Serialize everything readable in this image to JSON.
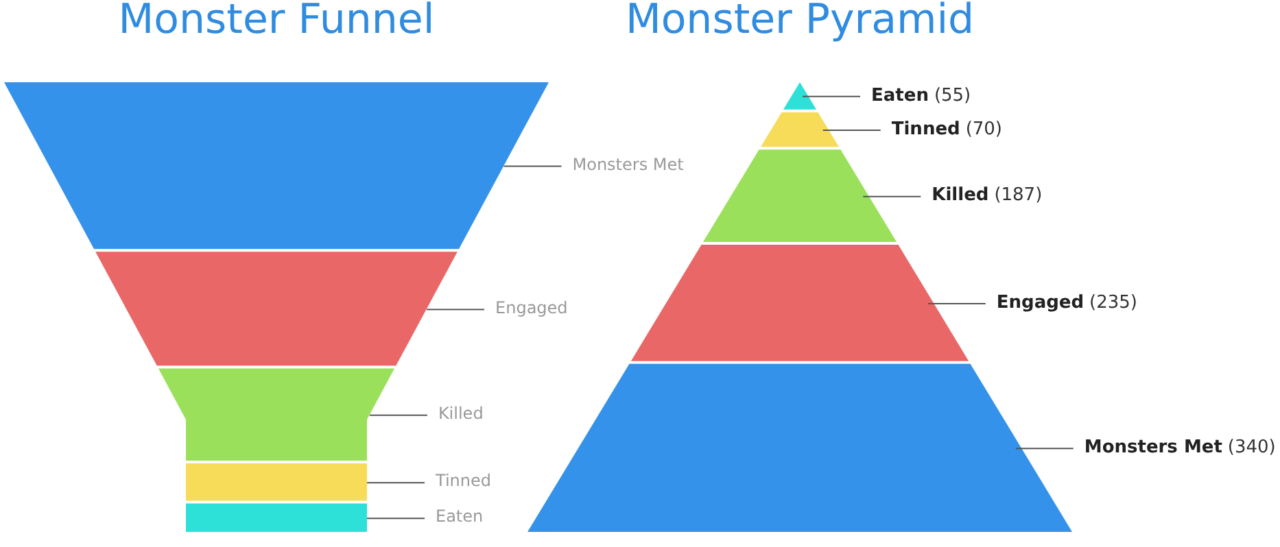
{
  "chart_data": [
    {
      "type": "other",
      "title": "Monster Funnel",
      "categories": [
        "Monsters Met",
        "Engaged",
        "Killed",
        "Tinned",
        "Eaten"
      ],
      "colors": [
        "#3592ea",
        "#ea6767",
        "#9be05b",
        "#f7dc5a",
        "#2de0d8"
      ]
    },
    {
      "type": "other",
      "title": "Monster Pyramid",
      "categories": [
        "Eaten",
        "Tinned",
        "Killed",
        "Engaged",
        "Monsters Met"
      ],
      "values": [
        55,
        70,
        187,
        235,
        340
      ],
      "value_labels": [
        "(55)",
        "(70)",
        "(187)",
        "(235)",
        "(340)"
      ],
      "colors": [
        "#2de0d8",
        "#f7dc5a",
        "#9be05b",
        "#ea6767",
        "#3592ea"
      ]
    }
  ]
}
